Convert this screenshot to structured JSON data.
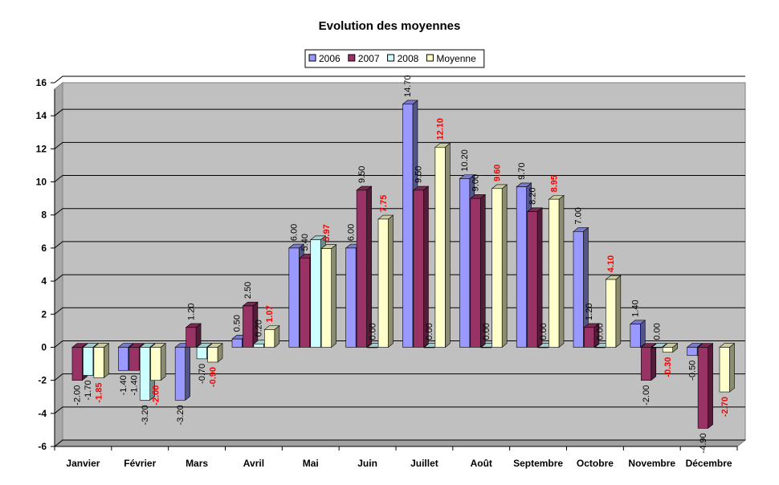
{
  "chart_data": {
    "type": "bar",
    "title": "Evolution des moyennes",
    "xlabel": "",
    "ylabel": "",
    "ylim": [
      -6,
      16
    ],
    "yticks": [
      -6,
      -4,
      -2,
      0,
      2,
      4,
      6,
      8,
      10,
      12,
      14,
      16
    ],
    "grid": true,
    "legend_position": "top-center",
    "categories": [
      "Janvier",
      "Février",
      "Mars",
      "Avril",
      "Mai",
      "Juin",
      "Juillet",
      "Août",
      "Septembre",
      "Octobre",
      "Novembre",
      "Décembre"
    ],
    "series": [
      {
        "name": "2006",
        "color": "#9999ff",
        "values": [
          null,
          -1.4,
          -3.2,
          0.5,
          6.0,
          6.0,
          14.7,
          10.2,
          9.7,
          7.0,
          1.4,
          -0.5
        ],
        "labels": [
          null,
          "-1.40",
          "-3.20",
          "0.50",
          "6.00",
          "6.00",
          "14.70",
          "10.20",
          "9.70",
          "7.00",
          "1.40",
          "-0.50"
        ]
      },
      {
        "name": "2007",
        "color": "#993366",
        "values": [
          -2.0,
          -1.4,
          1.2,
          2.5,
          5.4,
          9.5,
          9.5,
          9.0,
          8.2,
          1.2,
          -2.0,
          -4.9
        ],
        "labels": [
          "-2.00",
          "-1.40",
          "1.20",
          "2.50",
          "5.40",
          "9.50",
          "9.50",
          "9.00",
          "8.20",
          "1.20",
          "-2.00",
          "-4.90"
        ]
      },
      {
        "name": "2008",
        "color": "#ccffff",
        "values": [
          -1.7,
          -3.2,
          -0.7,
          0.2,
          6.5,
          0.0,
          0.0,
          0.0,
          0.0,
          0.0,
          0.0,
          null
        ],
        "labels": [
          "-1.70",
          "-3.20",
          "-0.70",
          "0.20",
          null,
          "0.00",
          "0.00",
          "0.00",
          "0.00",
          "0.00",
          "0.00",
          null
        ]
      },
      {
        "name": "Moyenne",
        "color": "#ffffcc",
        "values": [
          -1.85,
          -2.0,
          -0.9,
          1.07,
          5.97,
          7.75,
          12.1,
          9.6,
          8.95,
          4.1,
          -0.3,
          -2.7
        ],
        "labels": [
          "-1.85",
          "-2.00",
          "-0.90",
          "1.07",
          "5.97",
          "7.75",
          "12.10",
          "9.60",
          "8.95",
          "4.10",
          "-0.30",
          "-2.70"
        ]
      }
    ]
  }
}
